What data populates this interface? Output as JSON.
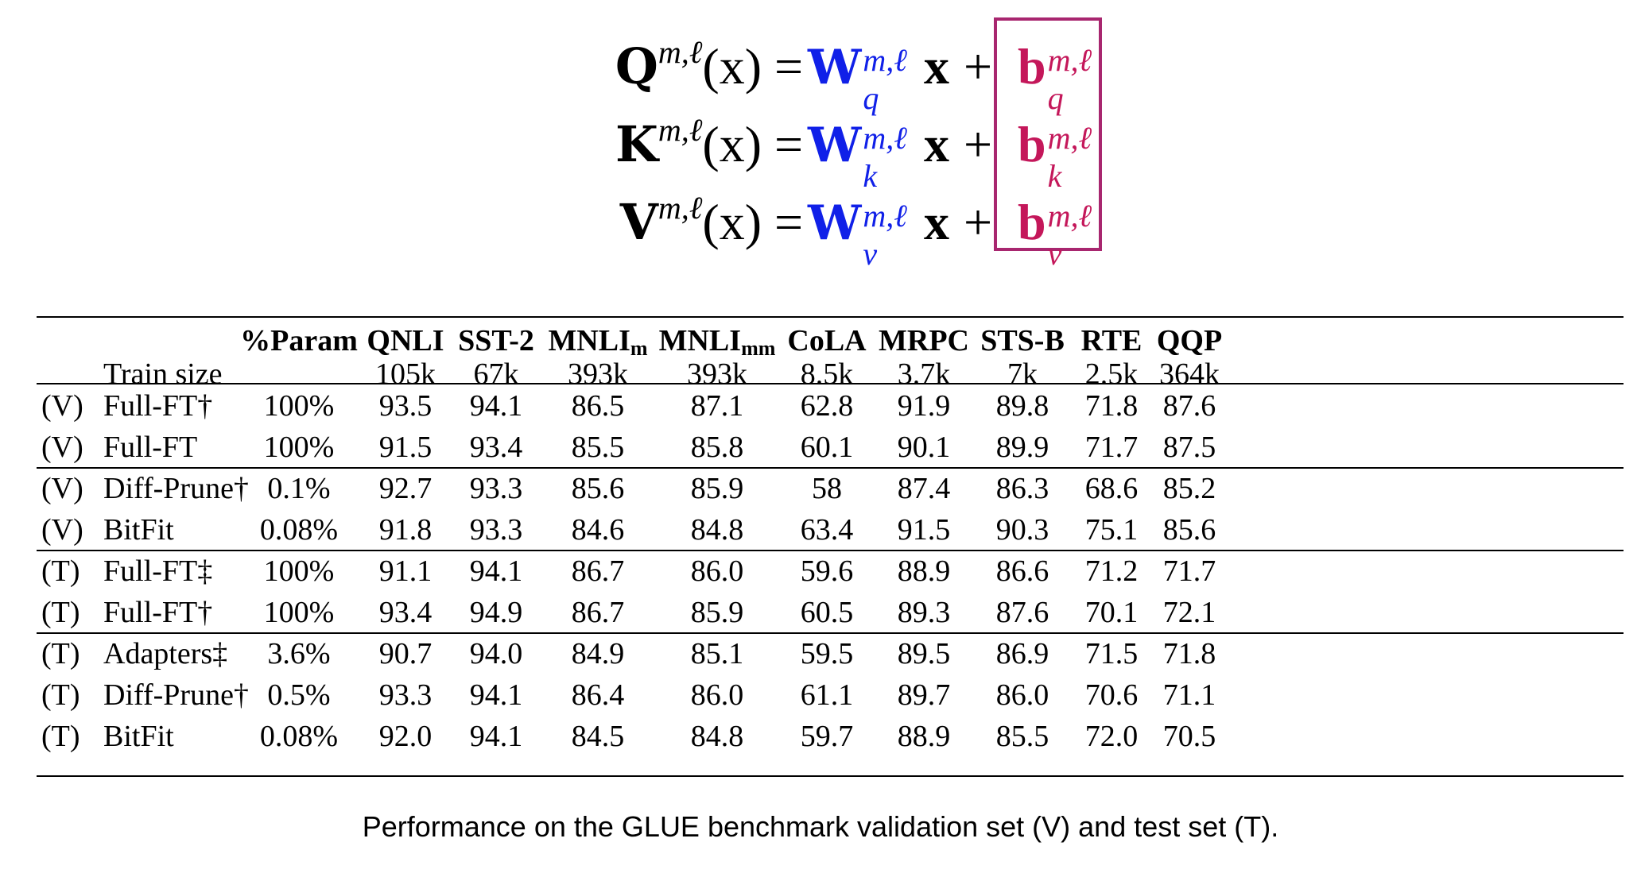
{
  "equations": [
    {
      "lhs": "Q",
      "weight_sub": "q",
      "bias_sub": "q"
    },
    {
      "lhs": "K",
      "weight_sub": "k",
      "bias_sub": "k"
    },
    {
      "lhs": "V",
      "weight_sub": "v",
      "bias_sub": "v"
    }
  ],
  "eq_common": {
    "superscript": "m,ℓ",
    "arg": "(x)",
    "equals": "=",
    "weight": "W",
    "x": "x",
    "plus": "+",
    "bias": "b"
  },
  "colors": {
    "weight": "#1020e8",
    "bias": "#c4175a",
    "box": "#a8266f"
  },
  "table": {
    "header": {
      "param": "%Param",
      "train_size_label": "Train size",
      "tasks": [
        {
          "name": "QNLI",
          "sub": "",
          "size": "105k"
        },
        {
          "name": "SST-2",
          "sub": "",
          "size": "67k"
        },
        {
          "name": "MNLI",
          "sub": "m",
          "size": "393k"
        },
        {
          "name": "MNLI",
          "sub": "mm",
          "size": "393k"
        },
        {
          "name": "CoLA",
          "sub": "",
          "size": "8.5k"
        },
        {
          "name": "MRPC",
          "sub": "",
          "size": "3.7k"
        },
        {
          "name": "STS-B",
          "sub": "",
          "size": "7k"
        },
        {
          "name": "RTE",
          "sub": "",
          "size": "2.5k"
        },
        {
          "name": "QQP",
          "sub": "",
          "size": "364k"
        }
      ]
    },
    "rows": [
      {
        "split": "(V)",
        "method": "Full-FT†",
        "param": "100%",
        "scores": [
          "93.5",
          "94.1",
          "86.5",
          "87.1",
          "62.8",
          "91.9",
          "89.8",
          "71.8",
          "87.6"
        ]
      },
      {
        "split": "(V)",
        "method": "Full-FT",
        "param": "100%",
        "scores": [
          "91.5",
          "93.4",
          "85.5",
          "85.8",
          "60.1",
          "90.1",
          "89.9",
          "71.7",
          "87.5"
        ]
      },
      {
        "split": "(V)",
        "method": "Diff-Prune†",
        "param": "0.1%",
        "scores": [
          "92.7",
          "93.3",
          "85.6",
          "85.9",
          "58",
          "87.4",
          "86.3",
          "68.6",
          "85.2"
        ]
      },
      {
        "split": "(V)",
        "method": "BitFit",
        "param": "0.08%",
        "scores": [
          "91.8",
          "93.3",
          "84.6",
          "84.8",
          "63.4",
          "91.5",
          "90.3",
          "75.1",
          "85.6"
        ]
      },
      {
        "split": "(T)",
        "method": "Full-FT‡",
        "param": "100%",
        "scores": [
          "91.1",
          "94.1",
          "86.7",
          "86.0",
          "59.6",
          "88.9",
          "86.6",
          "71.2",
          "71.7"
        ]
      },
      {
        "split": "(T)",
        "method": "Full-FT†",
        "param": "100%",
        "scores": [
          "93.4",
          "94.9",
          "86.7",
          "85.9",
          "60.5",
          "89.3",
          "87.6",
          "70.1",
          "72.1"
        ]
      },
      {
        "split": "(T)",
        "method": "Adapters‡",
        "param": "3.6%",
        "scores": [
          "90.7",
          "94.0",
          "84.9",
          "85.1",
          "59.5",
          "89.5",
          "86.9",
          "71.5",
          "71.8"
        ]
      },
      {
        "split": "(T)",
        "method": "Diff-Prune†",
        "param": "0.5%",
        "scores": [
          "93.3",
          "94.1",
          "86.4",
          "86.0",
          "61.1",
          "89.7",
          "86.0",
          "70.6",
          "71.1"
        ]
      },
      {
        "split": "(T)",
        "method": "BitFit",
        "param": "0.08%",
        "scores": [
          "92.0",
          "94.1",
          "84.5",
          "84.8",
          "59.7",
          "88.9",
          "85.5",
          "72.0",
          "70.5"
        ]
      }
    ]
  },
  "caption": "Performance on the GLUE benchmark validation set (V) and test set (T)."
}
